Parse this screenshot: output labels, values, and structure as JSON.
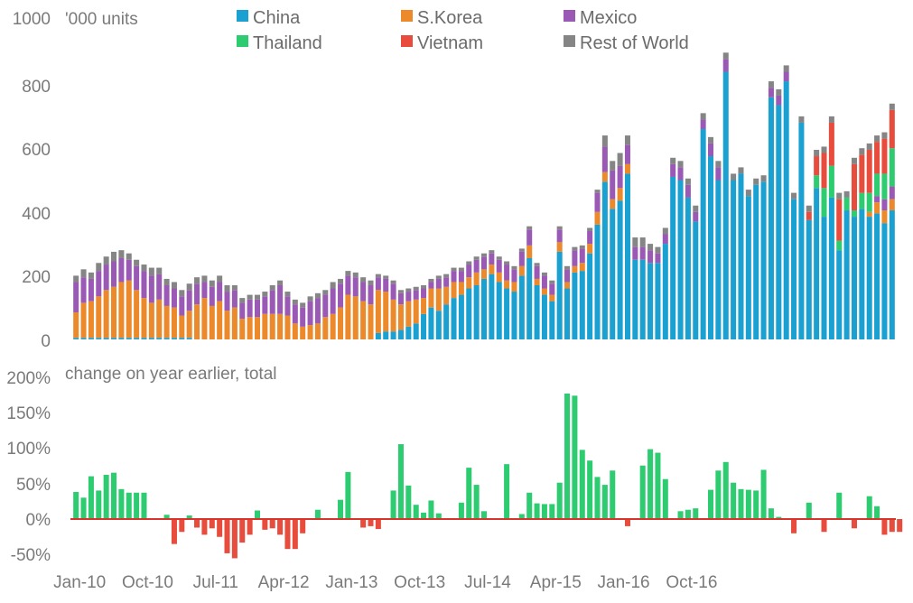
{
  "chart_data": [
    {
      "type": "bar",
      "stacked": true,
      "unit_label": "'000 units",
      "ylim": [
        0,
        1000
      ],
      "yticks": [
        "0",
        "200",
        "400",
        "600",
        "800",
        "1000"
      ],
      "series": [
        {
          "name": "China",
          "color": "#1aa0d1",
          "values": [
            5,
            5,
            5,
            5,
            5,
            5,
            5,
            5,
            5,
            5,
            5,
            5,
            5,
            5,
            5,
            5,
            0,
            0,
            0,
            0,
            0,
            0,
            0,
            0,
            0,
            0,
            0,
            0,
            0,
            0,
            0,
            0,
            0,
            0,
            0,
            0,
            0,
            0,
            0,
            0,
            20,
            25,
            25,
            30,
            40,
            50,
            80,
            100,
            90,
            110,
            130,
            140,
            160,
            170,
            190,
            205,
            180,
            160,
            150,
            200,
            255,
            170,
            140,
            120,
            275,
            160,
            210,
            215,
            270,
            360,
            495,
            410,
            435,
            520,
            250,
            250,
            240,
            240,
            300,
            510,
            500,
            445,
            370,
            660,
            575,
            500,
            840,
            500,
            520,
            450,
            485,
            495,
            760,
            735,
            810,
            440,
            680,
            375,
            475,
            385,
            445,
            280,
            405,
            385,
            410,
            385,
            395,
            365,
            405
          ]
        },
        {
          "name": "S.Korea",
          "color": "#ec8a2b",
          "values": [
            80,
            110,
            115,
            130,
            150,
            160,
            175,
            180,
            150,
            125,
            110,
            120,
            100,
            95,
            70,
            85,
            110,
            130,
            105,
            120,
            90,
            100,
            65,
            70,
            70,
            80,
            80,
            80,
            75,
            50,
            40,
            45,
            50,
            70,
            80,
            100,
            140,
            135,
            120,
            110,
            135,
            125,
            100,
            80,
            80,
            75,
            50,
            60,
            70,
            55,
            50,
            40,
            35,
            40,
            30,
            30,
            30,
            25,
            30,
            30,
            40,
            20,
            20,
            20,
            30,
            20,
            20,
            25,
            30,
            40,
            30,
            30,
            40,
            30,
            0,
            0,
            0,
            0,
            0,
            0,
            0,
            0,
            0,
            0,
            0,
            0,
            0,
            0,
            0,
            0,
            0,
            0,
            0,
            0,
            0,
            0,
            0,
            0,
            0,
            0,
            0,
            0,
            0,
            0,
            0,
            15,
            35,
            40,
            35
          ]
        },
        {
          "name": "Mexico",
          "color": "#9b59b6",
          "values": [
            95,
            80,
            70,
            80,
            80,
            80,
            75,
            65,
            75,
            85,
            85,
            80,
            65,
            60,
            60,
            65,
            65,
            50,
            60,
            60,
            60,
            55,
            50,
            55,
            55,
            55,
            75,
            90,
            60,
            60,
            60,
            75,
            80,
            70,
            80,
            75,
            60,
            60,
            60,
            60,
            40,
            40,
            50,
            35,
            30,
            30,
            30,
            20,
            30,
            30,
            35,
            35,
            40,
            40,
            40,
            35,
            40,
            50,
            40,
            45,
            50,
            40,
            40,
            35,
            40,
            40,
            50,
            45,
            40,
            60,
            80,
            90,
            70,
            60,
            40,
            40,
            40,
            30,
            30,
            40,
            40,
            40,
            30,
            30,
            40,
            40,
            40,
            0,
            0,
            0,
            0,
            0,
            30,
            30,
            30,
            0,
            0,
            0,
            0,
            0,
            0,
            0,
            0,
            0,
            0,
            0,
            20,
            35,
            40
          ]
        },
        {
          "name": "Thailand",
          "color": "#2ecc71",
          "values": [
            0,
            0,
            0,
            0,
            0,
            0,
            0,
            0,
            0,
            0,
            0,
            0,
            0,
            0,
            0,
            0,
            0,
            0,
            0,
            0,
            0,
            0,
            0,
            0,
            0,
            0,
            0,
            0,
            0,
            0,
            0,
            0,
            0,
            0,
            0,
            0,
            0,
            0,
            0,
            0,
            0,
            0,
            0,
            0,
            0,
            0,
            0,
            0,
            0,
            0,
            0,
            0,
            0,
            0,
            0,
            0,
            0,
            0,
            0,
            0,
            0,
            0,
            0,
            0,
            0,
            0,
            0,
            0,
            0,
            0,
            0,
            0,
            0,
            0,
            0,
            0,
            0,
            0,
            0,
            0,
            0,
            0,
            0,
            0,
            0,
            0,
            0,
            0,
            0,
            0,
            0,
            0,
            0,
            0,
            0,
            0,
            0,
            0,
            40,
            90,
            100,
            30,
            40,
            20,
            50,
            60,
            70,
            80,
            120
          ]
        },
        {
          "name": "Vietnam",
          "color": "#e74c3c",
          "values": [
            0,
            0,
            0,
            0,
            0,
            0,
            0,
            0,
            0,
            0,
            0,
            0,
            0,
            0,
            0,
            0,
            0,
            0,
            0,
            0,
            0,
            0,
            0,
            0,
            0,
            0,
            0,
            0,
            0,
            0,
            0,
            0,
            0,
            0,
            0,
            0,
            0,
            0,
            0,
            0,
            0,
            0,
            0,
            0,
            0,
            0,
            0,
            0,
            0,
            0,
            0,
            0,
            0,
            0,
            0,
            0,
            0,
            0,
            0,
            0,
            0,
            0,
            0,
            0,
            0,
            0,
            0,
            0,
            0,
            0,
            0,
            0,
            0,
            0,
            0,
            0,
            0,
            0,
            0,
            0,
            0,
            0,
            0,
            0,
            0,
            0,
            0,
            0,
            0,
            0,
            0,
            0,
            0,
            0,
            0,
            0,
            0,
            25,
            60,
            110,
            135,
            130,
            0,
            145,
            120,
            135,
            100,
            110,
            120
          ]
        },
        {
          "name": "Rest of World",
          "color": "#858585",
          "values": [
            20,
            25,
            20,
            25,
            25,
            30,
            25,
            20,
            20,
            20,
            25,
            20,
            20,
            20,
            20,
            20,
            20,
            20,
            20,
            20,
            20,
            15,
            15,
            15,
            15,
            15,
            15,
            15,
            15,
            15,
            15,
            15,
            15,
            15,
            20,
            15,
            15,
            15,
            15,
            15,
            10,
            10,
            10,
            10,
            10,
            10,
            10,
            10,
            10,
            10,
            10,
            10,
            10,
            10,
            10,
            10,
            10,
            10,
            10,
            10,
            10,
            10,
            10,
            10,
            10,
            10,
            10,
            10,
            10,
            10,
            35,
            30,
            40,
            30,
            30,
            30,
            20,
            20,
            20,
            20,
            20,
            20,
            20,
            20,
            20,
            20,
            20,
            20,
            20,
            20,
            20,
            20,
            20,
            20,
            20,
            20,
            20,
            20,
            20,
            20,
            20,
            20,
            20,
            20,
            20,
            20,
            20,
            20,
            20
          ]
        }
      ]
    },
    {
      "type": "bar",
      "title": "change on year earlier, total",
      "ylim": [
        -50,
        200
      ],
      "yticks": [
        "-50%",
        "0%",
        "50%",
        "100%",
        "150%",
        "200%"
      ],
      "positive_color": "#2ecc71",
      "negative_color": "#e74c3c",
      "baseline_color": "#d9342b",
      "values": [
        38,
        30,
        60,
        40,
        62,
        65,
        42,
        37,
        37,
        37,
        0,
        0,
        6,
        -35,
        -18,
        5,
        -12,
        -22,
        -13,
        -25,
        -48,
        -55,
        -33,
        -22,
        12,
        -15,
        -13,
        -22,
        -42,
        -42,
        -20,
        0,
        13,
        0,
        0,
        27,
        66,
        0,
        -12,
        -10,
        -14,
        0,
        40,
        105,
        47,
        20,
        9,
        26,
        8,
        0,
        0,
        23,
        72,
        48,
        11,
        0,
        0,
        77,
        0,
        7,
        37,
        22,
        21,
        21,
        51,
        176,
        173,
        97,
        82,
        59,
        48,
        68,
        0,
        -10,
        0,
        75,
        98,
        93,
        56,
        0,
        11,
        13,
        15,
        0,
        41,
        68,
        80,
        51,
        42,
        41,
        40,
        69,
        15,
        3,
        0,
        -20,
        0,
        23,
        0,
        -18,
        0,
        37,
        0,
        -13,
        0,
        32,
        18,
        -22,
        -18,
        -18
      ]
    }
  ],
  "legend": {
    "entries": [
      "China",
      "S.Korea",
      "Mexico",
      "Thailand",
      "Vietnam",
      "Rest of World"
    ]
  },
  "x_axis": {
    "labels": [
      "Jan-10",
      "Oct-10",
      "Jul-11",
      "Apr-12",
      "Jan-13",
      "Oct-13",
      "Jul-14",
      "Apr-15",
      "Jan-16",
      "Oct-16"
    ],
    "label_month_index": [
      0,
      9,
      18,
      27,
      36,
      45,
      54,
      63,
      72,
      81
    ]
  }
}
